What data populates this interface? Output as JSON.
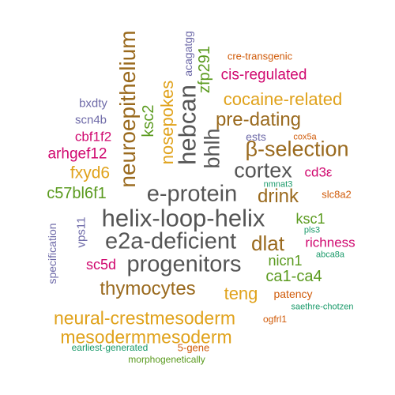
{
  "palette": {
    "gray": "#555555",
    "brown": "#9a6a1e",
    "gold": "#e0a21b",
    "green": "#5a9a1e",
    "magenta": "#d0086f",
    "slate": "#6e6aa8",
    "orange": "#d05a08",
    "teal": "#1a9a6a"
  },
  "words": {
    "helix_loop_helix": "helix-loop-helix",
    "e_protein": "e-protein",
    "e2a_deficient": "e2a-deficient",
    "progenitors": "progenitors",
    "cortex": "cortex",
    "beta_selection": "β-selection",
    "hebcan": "hebcan",
    "neuroepithelium": "neuroepithelium",
    "thymocytes": "thymocytes",
    "neural_crestmesoderm": "neural-crestmesoderm",
    "mesodermmesoderm": "mesodermmesoderm",
    "pre_dating": "pre-dating",
    "cocaine_related": "cocaine-related",
    "nosepokes": "nosepokes",
    "bhlh": "bhlh",
    "dlat": "dlat",
    "drink": "drink",
    "teng": "teng",
    "ca1_ca4": "ca1-ca4",
    "c57bl6f1": "c57bl6f1",
    "fxyd6": "fxyd6",
    "arhgef12": "arhgef12",
    "cbf1f2": "cbf1f2",
    "scn4b": "scn4b",
    "bxdty": "bxdty",
    "ksc2": "ksc2",
    "zfp291": "zfp291",
    "acagatgg": "acagatgg",
    "cre_transgenic": "cre-transgenic",
    "cis_regulated": "cis-regulated",
    "ests": "ests",
    "cox5a": "cox5a",
    "cd3e": "cd3ε",
    "nmnat3": "nmnat3",
    "slc8a2": "slc8a2",
    "ksc1": "ksc1",
    "pls3": "pls3",
    "richness": "richness",
    "abca8a": "abca8a",
    "nicn1": "nicn1",
    "sc5d": "sc5d",
    "vps11": "vps11",
    "specification": "specification",
    "patency": "patency",
    "saethre_chotzen": "saethre-chotzen",
    "ogfrl1": "ogfrl1",
    "earliest_generated": "earliest-generated",
    "five_gene": "5-gene",
    "morphogenetically": "morphogenetically"
  }
}
